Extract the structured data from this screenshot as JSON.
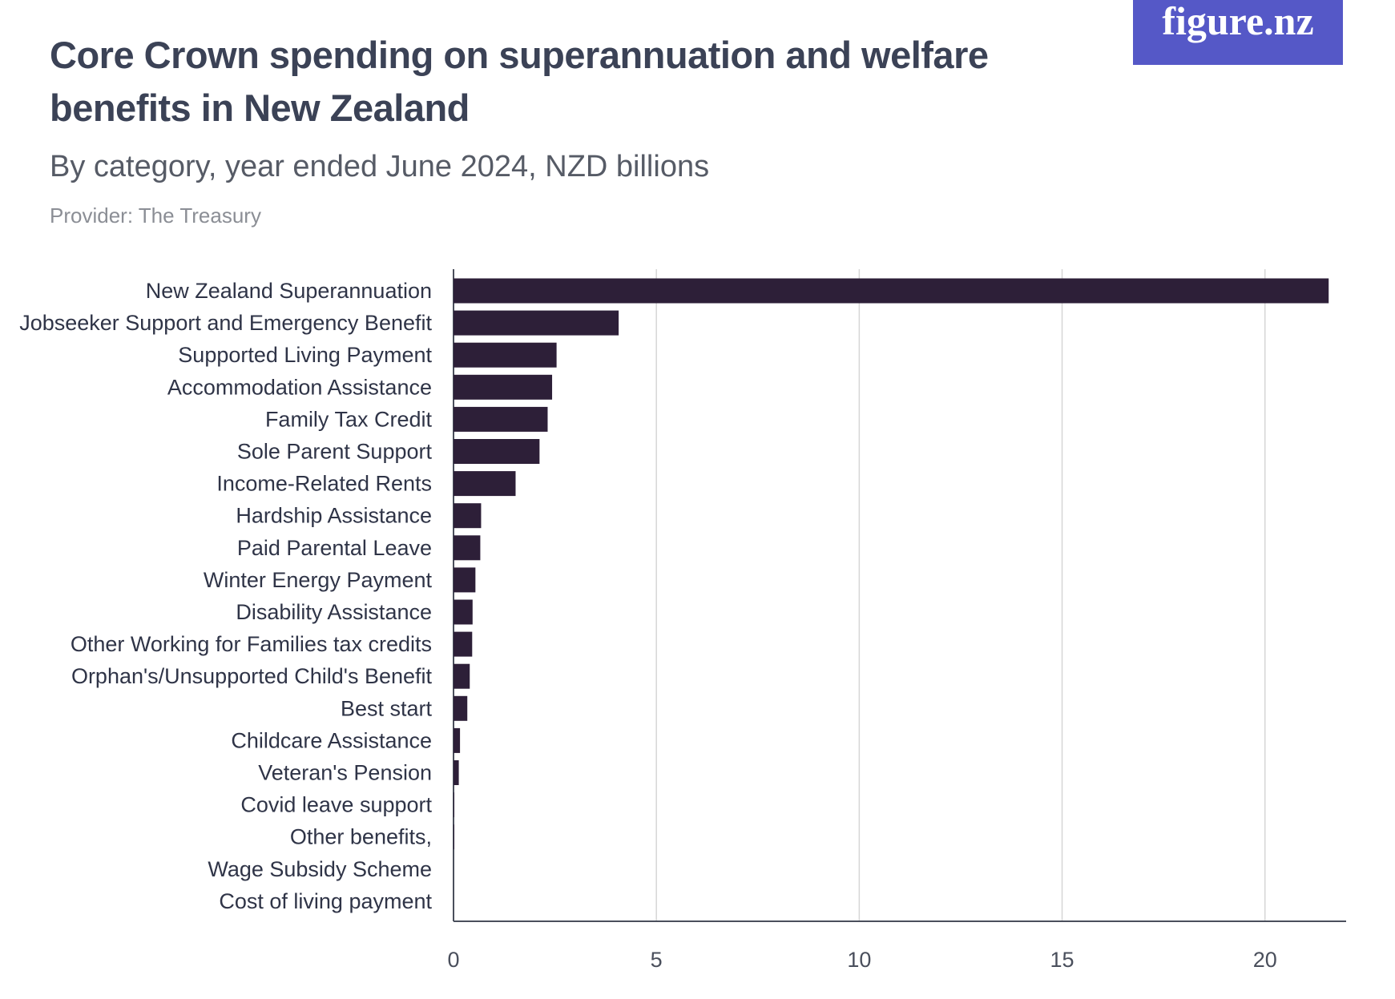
{
  "logo": {
    "text": "figure.nz",
    "color": "#5558c7"
  },
  "chart_data": {
    "type": "bar",
    "orientation": "horizontal",
    "title": "Core Crown spending on superannuation and welfare benefits in New Zealand",
    "subtitle": "By category, year ended June 2024, NZD billions",
    "provider": "Provider: The Treasury",
    "categories": [
      "New Zealand Superannuation",
      "Jobseeker Support and Emergency Benefit",
      "Supported Living Payment",
      "Accommodation Assistance",
      "Family Tax Credit",
      "Sole Parent Support",
      "Income-Related Rents",
      "Hardship Assistance",
      "Paid Parental Leave",
      "Winter Energy Payment",
      "Disability Assistance",
      "Other Working for Families tax credits",
      "Orphan's/Unsupported Child's Benefit",
      "Best start",
      "Childcare Assistance",
      "Veteran's Pension",
      "Covid leave support",
      "Other benefits,",
      "Wage Subsidy Scheme",
      "Cost of living payment"
    ],
    "values": [
      21.57,
      4.07,
      2.54,
      2.43,
      2.32,
      2.12,
      1.53,
      0.68,
      0.66,
      0.54,
      0.47,
      0.46,
      0.4,
      0.34,
      0.16,
      0.13,
      0.02,
      0.02,
      0.0,
      0.0
    ],
    "xlim": [
      0,
      22
    ],
    "xticks": [
      0,
      5,
      10,
      15,
      20
    ],
    "xlabel": "",
    "ylabel": "",
    "grid": true,
    "bar_color": "#2d1f38",
    "grid_color": "#d6d6d6",
    "axis_color": "#4a4f5c"
  }
}
